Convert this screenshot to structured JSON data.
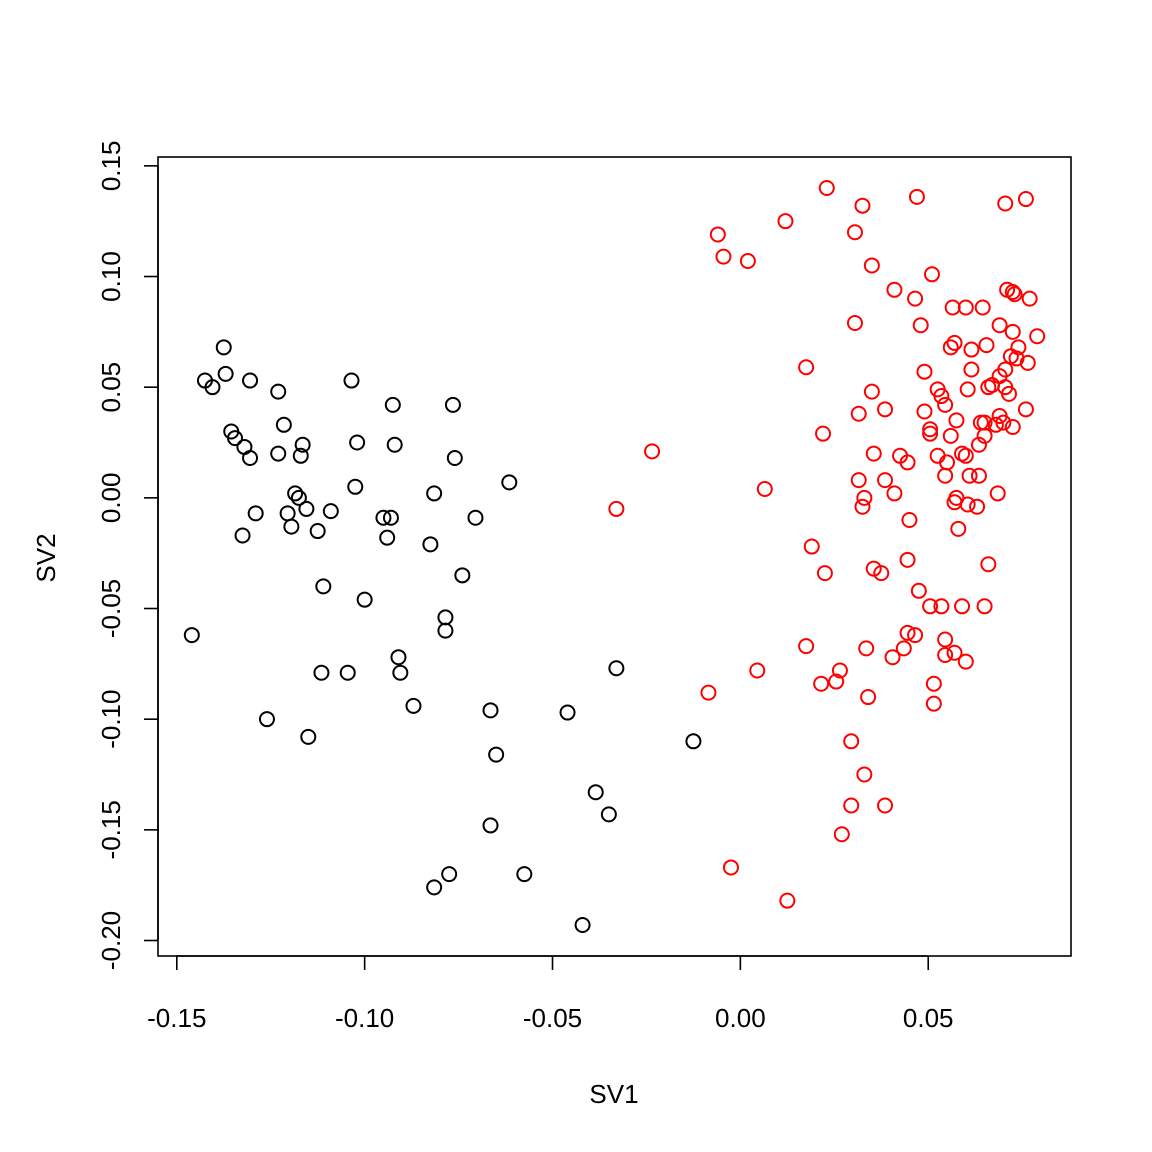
{
  "chart_data": {
    "type": "scatter",
    "title": "",
    "xlabel": "SV1",
    "ylabel": "SV2",
    "xlim": [
      -0.155,
      0.088
    ],
    "ylim": [
      -0.207,
      0.154
    ],
    "grid": false,
    "x_ticks": [
      -0.15,
      -0.1,
      -0.05,
      0.0,
      0.05
    ],
    "x_tick_labels": [
      "-0.15",
      "-0.10",
      "-0.05",
      "0.00",
      "0.05"
    ],
    "y_ticks": [
      -0.2,
      -0.15,
      -0.1,
      -0.05,
      0.0,
      0.05,
      0.1,
      0.15
    ],
    "y_tick_labels": [
      "-0.20",
      "-0.15",
      "-0.10",
      "-0.05",
      "0.00",
      "0.05",
      "0.10",
      "0.15"
    ],
    "series": [
      {
        "color": "#000000",
        "points": [
          [
            -0.1375,
            0.068
          ],
          [
            -0.1425,
            0.053
          ],
          [
            -0.1405,
            0.05
          ],
          [
            -0.137,
            0.056
          ],
          [
            -0.1305,
            0.053
          ],
          [
            -0.123,
            0.048
          ],
          [
            -0.1035,
            0.053
          ],
          [
            -0.0765,
            0.042
          ],
          [
            -0.0925,
            0.042
          ],
          [
            -0.1355,
            0.03
          ],
          [
            -0.1345,
            0.027
          ],
          [
            -0.132,
            0.023
          ],
          [
            -0.1305,
            0.018
          ],
          [
            -0.1215,
            0.033
          ],
          [
            -0.123,
            0.02
          ],
          [
            -0.1165,
            0.024
          ],
          [
            -0.117,
            0.019
          ],
          [
            -0.102,
            0.025
          ],
          [
            -0.092,
            0.024
          ],
          [
            -0.076,
            0.018
          ],
          [
            -0.0615,
            0.007
          ],
          [
            -0.1185,
            0.002
          ],
          [
            -0.1175,
            0.0
          ],
          [
            -0.1025,
            0.005
          ],
          [
            -0.0815,
            0.002
          ],
          [
            -0.129,
            -0.007
          ],
          [
            -0.1205,
            -0.007
          ],
          [
            -0.1155,
            -0.005
          ],
          [
            -0.109,
            -0.006
          ],
          [
            -0.095,
            -0.009
          ],
          [
            -0.093,
            -0.009
          ],
          [
            -0.0705,
            -0.009
          ],
          [
            -0.1195,
            -0.013
          ],
          [
            -0.1125,
            -0.015
          ],
          [
            -0.1325,
            -0.017
          ],
          [
            -0.094,
            -0.018
          ],
          [
            -0.0825,
            -0.021
          ],
          [
            -0.074,
            -0.035
          ],
          [
            -0.111,
            -0.04
          ],
          [
            -0.1,
            -0.046
          ],
          [
            -0.0785,
            -0.054
          ],
          [
            -0.0785,
            -0.06
          ],
          [
            -0.146,
            -0.062
          ],
          [
            -0.091,
            -0.072
          ],
          [
            -0.1115,
            -0.079
          ],
          [
            -0.1045,
            -0.079
          ],
          [
            -0.0905,
            -0.079
          ],
          [
            -0.033,
            -0.077
          ],
          [
            -0.087,
            -0.094
          ],
          [
            -0.0665,
            -0.096
          ],
          [
            -0.046,
            -0.097
          ],
          [
            -0.126,
            -0.1
          ],
          [
            -0.115,
            -0.108
          ],
          [
            -0.0125,
            -0.11
          ],
          [
            -0.065,
            -0.116
          ],
          [
            -0.0385,
            -0.133
          ],
          [
            -0.035,
            -0.143
          ],
          [
            -0.0665,
            -0.148
          ],
          [
            -0.0775,
            -0.17
          ],
          [
            -0.0575,
            -0.17
          ],
          [
            -0.0815,
            -0.176
          ],
          [
            -0.042,
            -0.193
          ]
        ]
      },
      {
        "color": "#ff0000",
        "points": [
          [
            0.023,
            0.14
          ],
          [
            0.047,
            0.136
          ],
          [
            0.076,
            0.135
          ],
          [
            0.0705,
            0.133
          ],
          [
            0.0325,
            0.132
          ],
          [
            0.012,
            0.125
          ],
          [
            0.0305,
            0.12
          ],
          [
            -0.006,
            0.119
          ],
          [
            -0.0045,
            0.109
          ],
          [
            0.002,
            0.107
          ],
          [
            0.035,
            0.105
          ],
          [
            0.051,
            0.101
          ],
          [
            0.041,
            0.094
          ],
          [
            0.071,
            0.094
          ],
          [
            0.073,
            0.092
          ],
          [
            0.0725,
            0.093
          ],
          [
            0.0465,
            0.09
          ],
          [
            0.077,
            0.09
          ],
          [
            0.0565,
            0.086
          ],
          [
            0.06,
            0.086
          ],
          [
            0.0645,
            0.086
          ],
          [
            0.0305,
            0.079
          ],
          [
            0.048,
            0.078
          ],
          [
            0.069,
            0.078
          ],
          [
            0.0725,
            0.075
          ],
          [
            0.079,
            0.073
          ],
          [
            0.057,
            0.07
          ],
          [
            0.0655,
            0.069
          ],
          [
            0.074,
            0.068
          ],
          [
            0.0615,
            0.067
          ],
          [
            0.056,
            0.068
          ],
          [
            0.072,
            0.064
          ],
          [
            0.0735,
            0.063
          ],
          [
            0.0765,
            0.061
          ],
          [
            0.0175,
            0.059
          ],
          [
            0.049,
            0.057
          ],
          [
            0.0615,
            0.058
          ],
          [
            0.0705,
            0.058
          ],
          [
            0.069,
            0.055
          ],
          [
            0.067,
            0.051
          ],
          [
            0.066,
            0.05
          ],
          [
            0.0705,
            0.05
          ],
          [
            0.0525,
            0.049
          ],
          [
            0.0605,
            0.049
          ],
          [
            0.0715,
            0.047
          ],
          [
            0.035,
            0.048
          ],
          [
            0.0535,
            0.046
          ],
          [
            0.0545,
            0.042
          ],
          [
            0.0385,
            0.04
          ],
          [
            0.049,
            0.039
          ],
          [
            0.076,
            0.04
          ],
          [
            0.0315,
            0.038
          ],
          [
            0.0575,
            0.035
          ],
          [
            0.069,
            0.037
          ],
          [
            0.064,
            0.034
          ],
          [
            0.065,
            0.034
          ],
          [
            0.068,
            0.033
          ],
          [
            0.07,
            0.034
          ],
          [
            0.0725,
            0.032
          ],
          [
            0.0505,
            0.031
          ],
          [
            0.0505,
            0.029
          ],
          [
            0.056,
            0.028
          ],
          [
            0.065,
            0.028
          ],
          [
            0.022,
            0.029
          ],
          [
            0.0635,
            0.024
          ],
          [
            -0.0235,
            0.021
          ],
          [
            0.0355,
            0.02
          ],
          [
            0.0425,
            0.019
          ],
          [
            0.0525,
            0.019
          ],
          [
            0.059,
            0.02
          ],
          [
            0.06,
            0.019
          ],
          [
            0.0445,
            0.016
          ],
          [
            0.055,
            0.016
          ],
          [
            0.061,
            0.01
          ],
          [
            0.0545,
            0.01
          ],
          [
            0.0635,
            0.01
          ],
          [
            0.0315,
            0.008
          ],
          [
            0.0385,
            0.008
          ],
          [
            0.0065,
            0.004
          ],
          [
            0.033,
            0.0
          ],
          [
            0.041,
            0.002
          ],
          [
            0.0575,
            0.0
          ],
          [
            0.0685,
            0.002
          ],
          [
            0.0325,
            -0.004
          ],
          [
            0.057,
            -0.002
          ],
          [
            0.0605,
            -0.003
          ],
          [
            0.063,
            -0.004
          ],
          [
            -0.033,
            -0.005
          ],
          [
            0.045,
            -0.01
          ],
          [
            0.058,
            -0.014
          ],
          [
            0.019,
            -0.022
          ],
          [
            0.0445,
            -0.028
          ],
          [
            0.066,
            -0.03
          ],
          [
            0.0355,
            -0.032
          ],
          [
            0.0225,
            -0.034
          ],
          [
            0.0375,
            -0.034
          ],
          [
            0.0475,
            -0.042
          ],
          [
            0.0505,
            -0.049
          ],
          [
            0.0535,
            -0.049
          ],
          [
            0.059,
            -0.049
          ],
          [
            0.065,
            -0.049
          ],
          [
            0.0445,
            -0.061
          ],
          [
            0.0465,
            -0.062
          ],
          [
            0.0545,
            -0.064
          ],
          [
            0.0175,
            -0.067
          ],
          [
            0.0335,
            -0.068
          ],
          [
            0.0435,
            -0.068
          ],
          [
            0.0545,
            -0.071
          ],
          [
            0.057,
            -0.07
          ],
          [
            0.0405,
            -0.072
          ],
          [
            0.06,
            -0.074
          ],
          [
            0.0045,
            -0.078
          ],
          [
            0.0265,
            -0.078
          ],
          [
            0.0215,
            -0.084
          ],
          [
            0.0255,
            -0.083
          ],
          [
            0.0515,
            -0.084
          ],
          [
            -0.0085,
            -0.088
          ],
          [
            0.034,
            -0.09
          ],
          [
            0.0515,
            -0.093
          ],
          [
            0.0295,
            -0.11
          ],
          [
            0.033,
            -0.125
          ],
          [
            0.0295,
            -0.139
          ],
          [
            0.0385,
            -0.139
          ],
          [
            0.027,
            -0.152
          ],
          [
            -0.0025,
            -0.167
          ],
          [
            0.0125,
            -0.182
          ]
        ]
      }
    ]
  }
}
